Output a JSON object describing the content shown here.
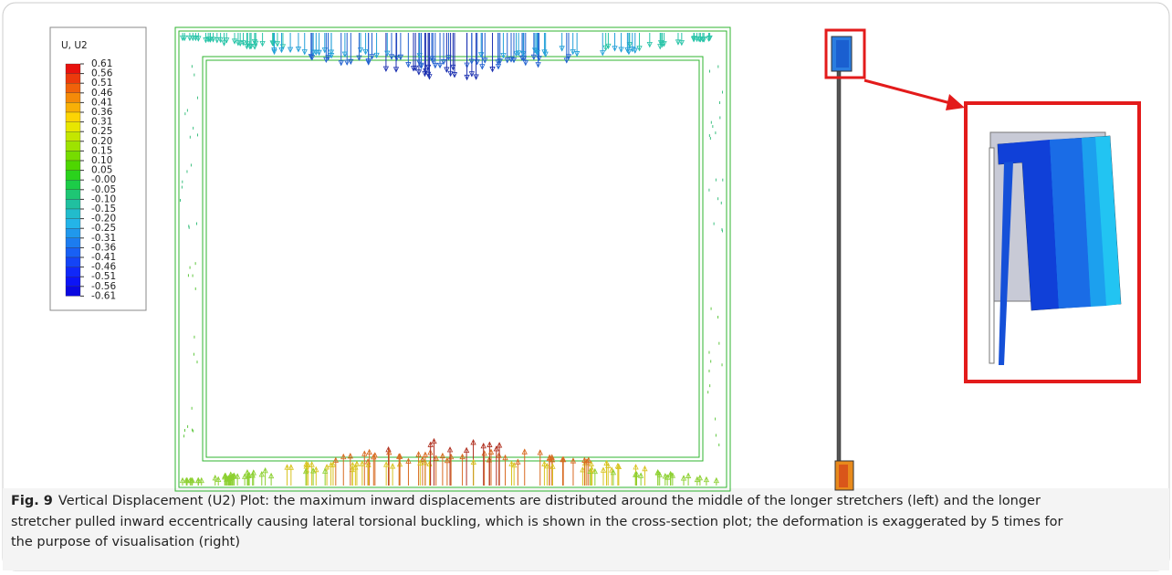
{
  "legend": {
    "title": "U, U2",
    "labels": [
      "0.61",
      "0.56",
      "0.51",
      "0.46",
      "0.41",
      "0.36",
      "0.31",
      "0.25",
      "0.20",
      "0.15",
      "0.10",
      "0.05",
      "-0.00",
      "-0.05",
      "-0.10",
      "-0.15",
      "-0.20",
      "-0.25",
      "-0.31",
      "-0.36",
      "-0.41",
      "-0.46",
      "-0.51",
      "-0.56",
      "-0.61"
    ],
    "colors": [
      "#e8120e",
      "#ec3a0c",
      "#f0620a",
      "#f48a08",
      "#f8b006",
      "#fcd404",
      "#e8e600",
      "#c4e600",
      "#9ee200",
      "#76dc00",
      "#4ed600",
      "#2ad21c",
      "#1ccc48",
      "#1ec674",
      "#20c0a0",
      "#22bccc",
      "#24b4e8",
      "#2098ec",
      "#1c7cf0",
      "#1860f4",
      "#1444f6",
      "#1028f8",
      "#0c14f6",
      "#0a08e0"
    ]
  },
  "caption": {
    "label": "Fig. 9",
    "text": "Vertical Displacement (U2) Plot: the maximum inward displacements are distributed around the middle of the longer stretchers (left) and the longer stretcher pulled inward eccentrically causing lateral torsional buckling, which is shown in the cross-section plot; the deformation is exaggerated by 5 times for the purpose of visualisation (right)"
  }
}
